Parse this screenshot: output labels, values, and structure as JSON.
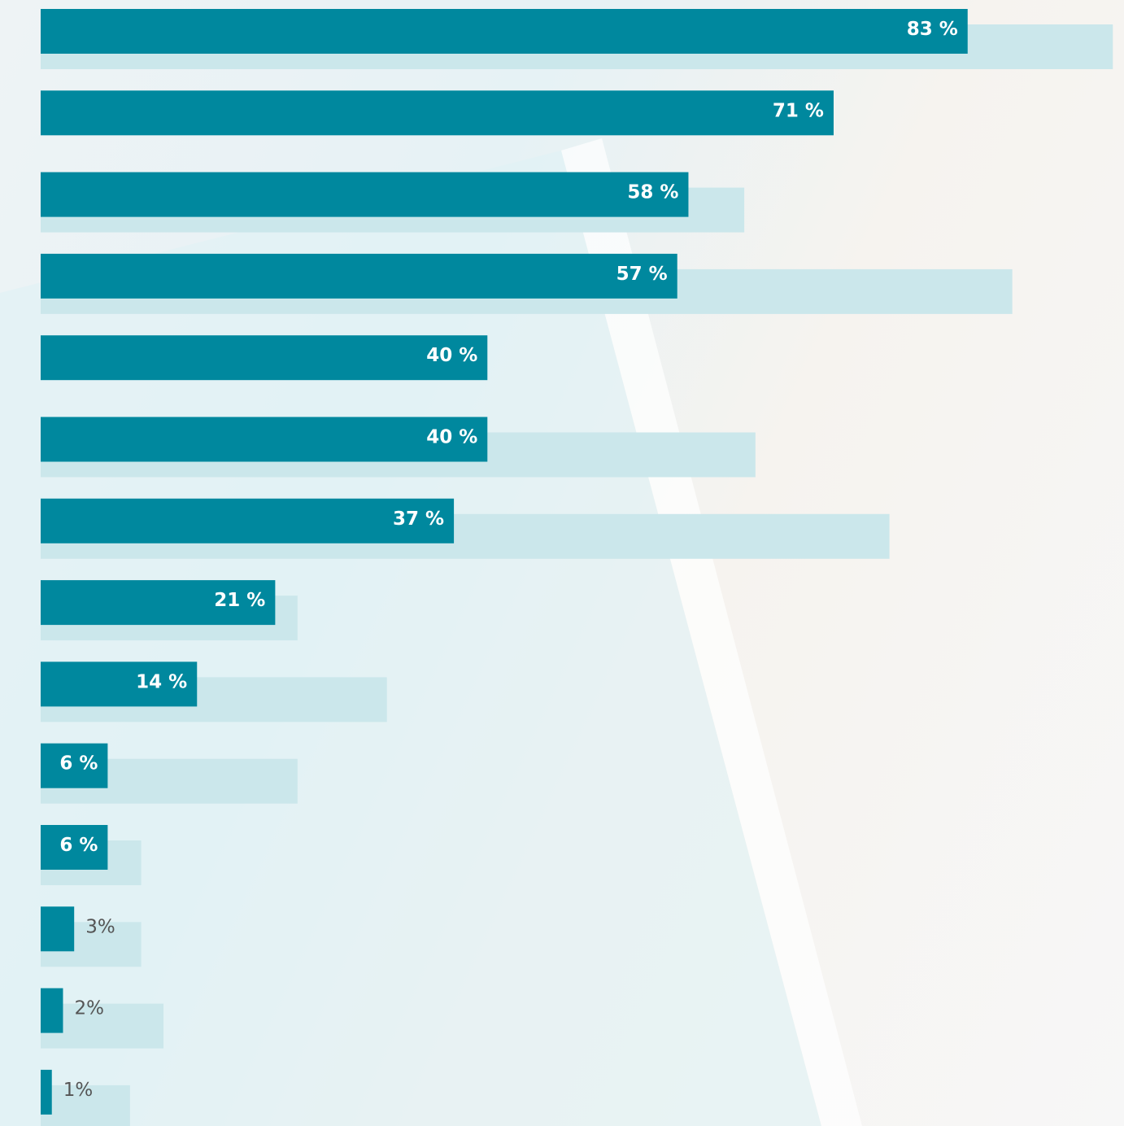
{
  "chart_data": {
    "type": "hbar",
    "orientation": "horizontal",
    "xlim": [
      0,
      97
    ],
    "series": [
      {
        "color": "#00889e",
        "values": [
          83,
          71,
          58,
          57,
          40,
          40,
          37,
          21,
          14,
          6,
          6,
          3,
          2,
          1
        ],
        "value_labels": [
          "83 %",
          "71 %",
          "58 %",
          "57 %",
          "40 %",
          "40 %",
          "37 %",
          "21 %",
          "14 %",
          "6 %",
          "6 %",
          "3%",
          "2%",
          "1%"
        ]
      },
      {
        "color": "#cbe7eb",
        "values": [
          96,
          null,
          63,
          87,
          null,
          64,
          76,
          23,
          31,
          23,
          9,
          9,
          11,
          8
        ]
      }
    ]
  }
}
